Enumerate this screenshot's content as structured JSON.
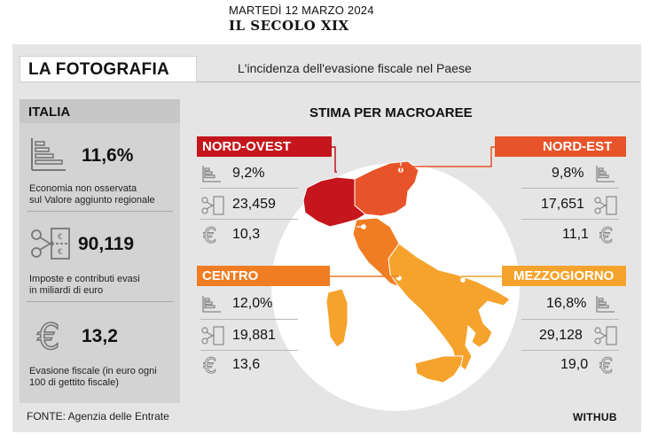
{
  "masthead": {
    "date": "MARTEDÌ 12 MARZO 2024",
    "name": "IL SECOLO XIX"
  },
  "header": {
    "title": "LA FOTOGRAFIA",
    "subtitle": "L'incidenza dell'evasione fiscale nel Paese"
  },
  "italia": {
    "title": "ITALIA",
    "items": [
      {
        "icon": "bar-chart-icon",
        "value": "11,6%",
        "desc1": "Economia non osservata",
        "desc2": "sul Valore aggiunto regionale"
      },
      {
        "icon": "scissors-banknote-icon",
        "value": "90,119",
        "desc1": "Imposte e contributi evasi",
        "desc2": "in miliardi di euro"
      },
      {
        "icon": "euro-icon",
        "value": "13,2",
        "desc1": "Evasione fiscale (in euro ogni",
        "desc2": "100 di gettito fiscale)"
      }
    ]
  },
  "macro": {
    "title": "STIMA PER MACROAREE",
    "nord_ovest": {
      "name": "NORD-OVEST",
      "color": "#c4161c",
      "v1": "9,2%",
      "v2": "23,459",
      "v3": "10,3"
    },
    "nord_est": {
      "name": "NORD-EST",
      "color": "#e8542a",
      "v1": "9,8%",
      "v2": "17,651",
      "v3": "11,1"
    },
    "centro": {
      "name": "CENTRO",
      "color": "#f07d23",
      "v1": "12,0%",
      "v2": "19,881",
      "v3": "13,6"
    },
    "mezzogiorno": {
      "name": "MEZZOGIORNO",
      "color": "#f5a32c",
      "v1": "16,8%",
      "v2": "29,128",
      "v3": "19,0"
    }
  },
  "footer": {
    "source": "FONTE: Agenzia delle Entrate",
    "credit": "WITHUB"
  }
}
